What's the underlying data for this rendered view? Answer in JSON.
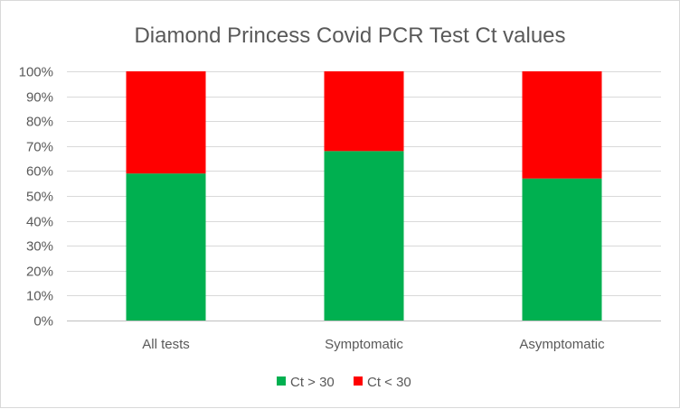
{
  "chart_data": {
    "type": "bar",
    "stacked": "percent",
    "title": "Diamond Princess Covid PCR Test Ct values",
    "xlabel": "",
    "ylabel": "",
    "categories": [
      "All tests",
      "Symptomatic",
      "Asymptomatic"
    ],
    "series": [
      {
        "name": "Ct > 30",
        "color": "#00b050",
        "values": [
          59,
          68,
          57
        ]
      },
      {
        "name": "Ct < 30",
        "color": "#ff0000",
        "values": [
          41,
          32,
          43
        ]
      }
    ],
    "ylim": [
      0,
      100
    ],
    "yticks": [
      "0%",
      "10%",
      "20%",
      "30%",
      "40%",
      "50%",
      "60%",
      "70%",
      "80%",
      "90%",
      "100%"
    ],
    "grid": true,
    "legend_position": "bottom"
  }
}
